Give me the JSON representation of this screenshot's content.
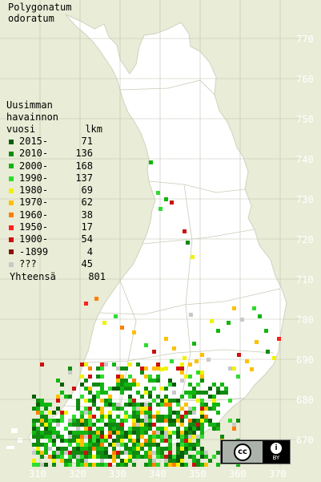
{
  "title": {
    "line1": "Polygonatum",
    "line2": "odoratum"
  },
  "legend": {
    "header1": "Uusimman",
    "header2": "havainnon",
    "header3_left": "vuosi",
    "header3_right": "lkm",
    "items": [
      {
        "label": "2015-",
        "count": "71",
        "color": "#0b5e0b"
      },
      {
        "label": "2010-",
        "count": "136",
        "color": "#118a11"
      },
      {
        "label": "2000-",
        "count": "168",
        "color": "#12b512"
      },
      {
        "label": "1990-",
        "count": "137",
        "color": "#2edc2e"
      },
      {
        "label": "1980-",
        "count": "69",
        "color": "#f2f200"
      },
      {
        "label": "1970-",
        "count": "62",
        "color": "#ffc000"
      },
      {
        "label": "1960-",
        "count": "38",
        "color": "#ff7f00"
      },
      {
        "label": "1950-",
        "count": "17",
        "color": "#ff2020"
      },
      {
        "label": "1900-",
        "count": "54",
        "color": "#cc1010"
      },
      {
        "label": "-1899",
        "count": "4",
        "color": "#8a1010"
      },
      {
        "label": "???",
        "count": "45",
        "color": "#c8c8c8"
      }
    ],
    "total_label": "Yhteensä",
    "total_count": "801"
  },
  "axes": {
    "y_ticks": [
      "770",
      "760",
      "750",
      "740",
      "730",
      "720",
      "710",
      "700",
      "690",
      "680",
      "670"
    ],
    "x_ticks": [
      "310",
      "320",
      "330",
      "340",
      "350",
      "360",
      "370"
    ]
  },
  "colors": {
    "background": "#e9ecd6",
    "land": "#ffffff",
    "grid": "#b8bca8",
    "border": "#c8ccb8"
  },
  "license": {
    "cc": "cc",
    "by": "BY",
    "by_icon": "person-icon"
  }
}
